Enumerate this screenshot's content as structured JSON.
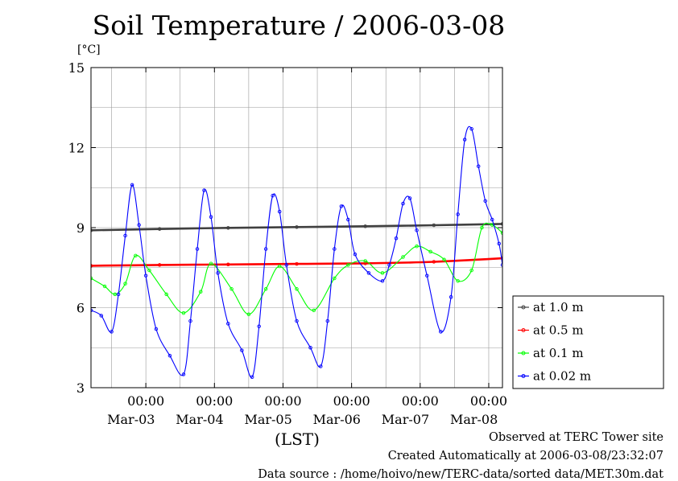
{
  "chart_data": {
    "type": "line",
    "title": "Soil Temperature / 2006-03-08",
    "ylabel": "[°C]",
    "xlabel": "(LST)",
    "ylim": [
      3,
      15
    ],
    "yticks": [
      3,
      6,
      9,
      12,
      15
    ],
    "x_range_days": [
      -0.8,
      5.2
    ],
    "xticks": [
      {
        "time": "00:00",
        "date": "Mar-03"
      },
      {
        "time": "00:00",
        "date": "Mar-04"
      },
      {
        "time": "00:00",
        "date": "Mar-05"
      },
      {
        "time": "00:00",
        "date": "Mar-06"
      },
      {
        "time": "00:00",
        "date": "Mar-07"
      },
      {
        "time": "00:00",
        "date": "Mar-08"
      }
    ],
    "grid": true,
    "legend_position": "right",
    "series": [
      {
        "name": "at 1.0 m",
        "color": "#404040",
        "x": [
          -0.8,
          0.2,
          1.2,
          2.2,
          3.2,
          4.2,
          5.2
        ],
        "y": [
          8.9,
          8.95,
          8.99,
          9.02,
          9.05,
          9.09,
          9.14
        ]
      },
      {
        "name": "at 0.5 m",
        "color": "#ff0000",
        "x": [
          -0.8,
          0.2,
          1.2,
          2.2,
          3.2,
          4.2,
          5.2
        ],
        "y": [
          7.57,
          7.6,
          7.62,
          7.64,
          7.66,
          7.72,
          7.85
        ]
      },
      {
        "name": "at 0.1 m",
        "color": "#00ff00",
        "x": [
          -0.8,
          -0.6,
          -0.45,
          -0.3,
          -0.15,
          0.05,
          0.3,
          0.55,
          0.8,
          0.95,
          1.25,
          1.5,
          1.75,
          1.95,
          2.2,
          2.45,
          2.75,
          2.95,
          3.2,
          3.45,
          3.75,
          3.95,
          4.15,
          4.35,
          4.55,
          4.75,
          4.9,
          5.05,
          5.2
        ],
        "y": [
          7.1,
          6.8,
          6.5,
          6.9,
          7.95,
          7.4,
          6.5,
          5.8,
          6.6,
          7.65,
          6.7,
          5.75,
          6.7,
          7.55,
          6.7,
          5.9,
          7.1,
          7.6,
          7.75,
          7.3,
          7.9,
          8.3,
          8.1,
          7.8,
          7.0,
          7.4,
          9.0,
          9.1,
          8.8
        ]
      },
      {
        "name": "at 0.02 m",
        "color": "#0000ff",
        "x": [
          -0.8,
          -0.65,
          -0.5,
          -0.4,
          -0.3,
          -0.2,
          -0.1,
          0.0,
          0.15,
          0.35,
          0.55,
          0.65,
          0.75,
          0.85,
          0.95,
          1.05,
          1.2,
          1.4,
          1.55,
          1.65,
          1.75,
          1.85,
          1.95,
          2.05,
          2.2,
          2.4,
          2.55,
          2.65,
          2.75,
          2.85,
          2.95,
          3.05,
          3.25,
          3.45,
          3.55,
          3.65,
          3.75,
          3.85,
          3.95,
          4.1,
          4.3,
          4.45,
          4.55,
          4.65,
          4.75,
          4.85,
          4.95,
          5.05,
          5.15,
          5.2
        ],
        "y": [
          5.9,
          5.7,
          5.1,
          6.5,
          8.7,
          10.6,
          9.1,
          7.2,
          5.2,
          4.2,
          3.5,
          5.5,
          8.2,
          10.4,
          9.4,
          7.3,
          5.4,
          4.4,
          3.4,
          5.3,
          8.2,
          10.2,
          9.6,
          7.6,
          5.5,
          4.5,
          3.8,
          5.5,
          8.2,
          9.8,
          9.3,
          8.0,
          7.3,
          7.0,
          7.6,
          8.6,
          9.9,
          10.1,
          8.9,
          7.2,
          5.1,
          6.4,
          9.5,
          12.3,
          12.7,
          11.3,
          10.0,
          9.3,
          8.4,
          7.6
        ]
      }
    ],
    "notes": [
      "Observed at TERC Tower site",
      "Created Automatically at 2006-03-08/23:32:07",
      "Data source : /home/hoivo/new/TERC-data/sorted  data/MET.30m.dat"
    ]
  }
}
